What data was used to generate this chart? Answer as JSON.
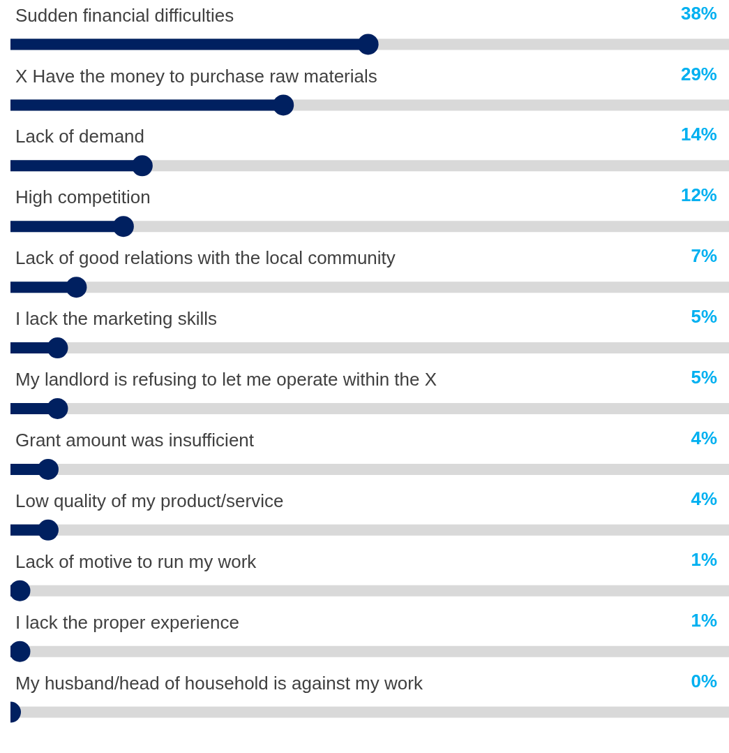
{
  "chart_data": {
    "type": "lollipop",
    "orientation": "horizontal",
    "marker": "circle",
    "legend": false,
    "grid": "y",
    "color": "#002060",
    "categories": [
      "Sudden financial difficulties",
      "X Have the money to purchase raw materials",
      "Lack of demand",
      "High competition",
      "Lack of good relations with the local community",
      "I lack the marketing skills",
      "My landlord is refusing to let me operate within the X",
      "Grant amount was insufficient",
      "Low quality of my product/service",
      "Lack of motive to run my work",
      "I lack the proper experience",
      "My husband/head of household is against my work"
    ],
    "values": [
      38,
      29,
      14,
      12,
      7,
      5,
      5,
      4,
      4,
      1,
      1,
      0
    ],
    "value_labels": [
      "38%",
      "29%",
      "14%",
      "12%",
      "7%",
      "5%",
      "5%",
      "4%",
      "4%",
      "1%",
      "1%",
      "0%"
    ]
  }
}
